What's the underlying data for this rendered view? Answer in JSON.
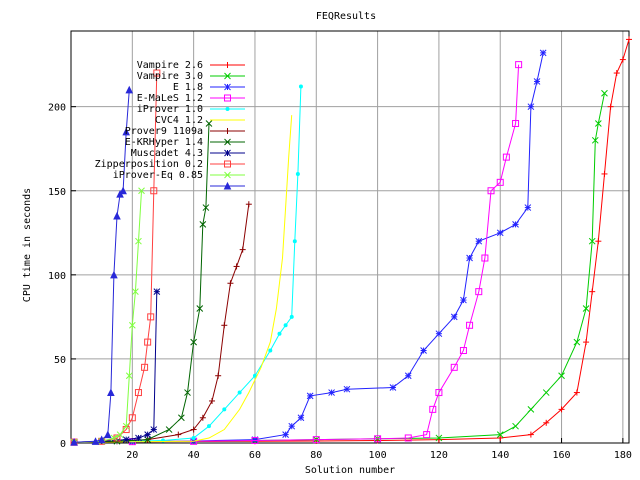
{
  "chart_data": {
    "type": "line",
    "title": "FEQResults",
    "xlabel": "Solution number",
    "ylabel": "CPU time in seconds",
    "xlim": [
      0,
      182
    ],
    "ylim": [
      0,
      245
    ],
    "xticks": [
      20,
      40,
      60,
      80,
      100,
      120,
      140,
      160,
      180
    ],
    "yticks": [
      0,
      50,
      100,
      150,
      200
    ],
    "grid": true,
    "legend_position": "top-left",
    "series": [
      {
        "name": "Vampire 2.6",
        "color": "#ff0000",
        "marker": "plus",
        "points": [
          [
            1,
            0.5
          ],
          [
            20,
            0.8
          ],
          [
            40,
            0.9
          ],
          [
            60,
            1.0
          ],
          [
            80,
            1.2
          ],
          [
            100,
            1.5
          ],
          [
            120,
            2
          ],
          [
            140,
            3
          ],
          [
            150,
            5
          ],
          [
            155,
            12
          ],
          [
            160,
            20
          ],
          [
            165,
            30
          ],
          [
            168,
            60
          ],
          [
            170,
            90
          ],
          [
            172,
            120
          ],
          [
            174,
            160
          ],
          [
            176,
            200
          ],
          [
            178,
            220
          ],
          [
            180,
            228
          ],
          [
            182,
            240
          ]
        ]
      },
      {
        "name": "Vampire 3.0",
        "color": "#00cc00",
        "marker": "cross",
        "points": [
          [
            1,
            0.5
          ],
          [
            20,
            0.7
          ],
          [
            40,
            1.0
          ],
          [
            60,
            1.5
          ],
          [
            80,
            2
          ],
          [
            100,
            2.5
          ],
          [
            120,
            3
          ],
          [
            140,
            5
          ],
          [
            145,
            10
          ],
          [
            150,
            20
          ],
          [
            155,
            30
          ],
          [
            160,
            40
          ],
          [
            165,
            60
          ],
          [
            168,
            80
          ],
          [
            170,
            120
          ],
          [
            171,
            180
          ],
          [
            172,
            190
          ],
          [
            174,
            208
          ]
        ]
      },
      {
        "name": "E 1.8",
        "color": "#2222ff",
        "marker": "star",
        "points": [
          [
            1,
            0.5
          ],
          [
            20,
            0.8
          ],
          [
            40,
            1.2
          ],
          [
            60,
            2
          ],
          [
            70,
            5
          ],
          [
            72,
            10
          ],
          [
            75,
            15
          ],
          [
            78,
            28
          ],
          [
            85,
            30
          ],
          [
            90,
            32
          ],
          [
            105,
            33
          ],
          [
            110,
            40
          ],
          [
            115,
            55
          ],
          [
            120,
            65
          ],
          [
            125,
            75
          ],
          [
            128,
            85
          ],
          [
            130,
            110
          ],
          [
            133,
            120
          ],
          [
            140,
            125
          ],
          [
            145,
            130
          ],
          [
            149,
            140
          ],
          [
            150,
            200
          ],
          [
            152,
            215
          ],
          [
            154,
            232
          ]
        ]
      },
      {
        "name": "E-MaLeS 1.2",
        "color": "#ff00ff",
        "marker": "box",
        "points": [
          [
            1,
            0.5
          ],
          [
            20,
            0.8
          ],
          [
            40,
            1
          ],
          [
            60,
            1.5
          ],
          [
            80,
            2
          ],
          [
            100,
            2.5
          ],
          [
            110,
            3
          ],
          [
            116,
            5
          ],
          [
            118,
            20
          ],
          [
            120,
            30
          ],
          [
            125,
            45
          ],
          [
            128,
            55
          ],
          [
            130,
            70
          ],
          [
            133,
            90
          ],
          [
            135,
            110
          ],
          [
            137,
            150
          ],
          [
            140,
            155
          ],
          [
            142,
            170
          ],
          [
            145,
            190
          ],
          [
            146,
            225
          ]
        ]
      },
      {
        "name": "iProver 1.0",
        "color": "#00ffff",
        "marker": "dot",
        "points": [
          [
            1,
            0.5
          ],
          [
            15,
            0.8
          ],
          [
            30,
            1.5
          ],
          [
            40,
            3
          ],
          [
            45,
            10
          ],
          [
            50,
            20
          ],
          [
            55,
            30
          ],
          [
            60,
            40
          ],
          [
            65,
            55
          ],
          [
            68,
            65
          ],
          [
            70,
            70
          ],
          [
            72,
            75
          ],
          [
            73,
            120
          ],
          [
            74,
            160
          ],
          [
            75,
            212
          ]
        ]
      },
      {
        "name": "CVC4 1.2",
        "color": "#ffff00",
        "marker": "none",
        "points": [
          [
            1,
            0.5
          ],
          [
            20,
            0.7
          ],
          [
            40,
            1
          ],
          [
            45,
            3
          ],
          [
            50,
            8
          ],
          [
            55,
            20
          ],
          [
            58,
            30
          ],
          [
            62,
            45
          ],
          [
            65,
            60
          ],
          [
            67,
            80
          ],
          [
            69,
            110
          ],
          [
            70,
            140
          ],
          [
            71,
            170
          ],
          [
            72,
            195
          ]
        ]
      },
      {
        "name": "Prover9 1109a",
        "color": "#8b0000",
        "marker": "plus",
        "points": [
          [
            1,
            0.5
          ],
          [
            15,
            1
          ],
          [
            25,
            2
          ],
          [
            35,
            5
          ],
          [
            40,
            8
          ],
          [
            43,
            15
          ],
          [
            46,
            25
          ],
          [
            48,
            40
          ],
          [
            50,
            70
          ],
          [
            52,
            95
          ],
          [
            54,
            105
          ],
          [
            56,
            115
          ],
          [
            58,
            142
          ]
        ]
      },
      {
        "name": "E-KRHyper 1.4",
        "color": "#006400",
        "marker": "cross",
        "points": [
          [
            1,
            0.5
          ],
          [
            15,
            1
          ],
          [
            25,
            2
          ],
          [
            32,
            8
          ],
          [
            36,
            15
          ],
          [
            38,
            30
          ],
          [
            40,
            60
          ],
          [
            42,
            80
          ],
          [
            43,
            130
          ],
          [
            44,
            140
          ],
          [
            45,
            190
          ]
        ]
      },
      {
        "name": "Muscadet 4.3",
        "color": "#00008b",
        "marker": "star",
        "points": [
          [
            1,
            0.5
          ],
          [
            10,
            1
          ],
          [
            18,
            2
          ],
          [
            22,
            3
          ],
          [
            25,
            5
          ],
          [
            27,
            8
          ],
          [
            28,
            90
          ]
        ]
      },
      {
        "name": "Zipperposition 0.2",
        "color": "#ff4040",
        "marker": "box",
        "points": [
          [
            1,
            0.5
          ],
          [
            10,
            1
          ],
          [
            15,
            3
          ],
          [
            18,
            8
          ],
          [
            20,
            15
          ],
          [
            22,
            30
          ],
          [
            24,
            45
          ],
          [
            25,
            60
          ],
          [
            26,
            75
          ],
          [
            27,
            150
          ],
          [
            28,
            220
          ]
        ]
      },
      {
        "name": "iProver-Eq 0.85",
        "color": "#80ff40",
        "marker": "cross",
        "points": [
          [
            1,
            0.5
          ],
          [
            10,
            1
          ],
          [
            14,
            3
          ],
          [
            16,
            5
          ],
          [
            18,
            10
          ],
          [
            19,
            40
          ],
          [
            20,
            70
          ],
          [
            21,
            90
          ],
          [
            22,
            120
          ],
          [
            23,
            150
          ]
        ]
      },
      {
        "name": "",
        "color": "#2828d8",
        "marker": "triangle",
        "points": [
          [
            1,
            0.5
          ],
          [
            8,
            1
          ],
          [
            10,
            2
          ],
          [
            12,
            5
          ],
          [
            13,
            30
          ],
          [
            14,
            100
          ],
          [
            15,
            135
          ],
          [
            16,
            148
          ],
          [
            17,
            150
          ],
          [
            18,
            185
          ],
          [
            19,
            210
          ]
        ]
      }
    ]
  }
}
